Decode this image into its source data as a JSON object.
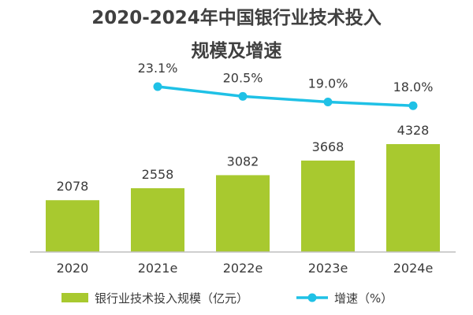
{
  "chart_data": {
    "type": "bar",
    "title_line1": "2020-2024年中国银行业技术投入",
    "title_line2": "规模及增速",
    "categories": [
      "2020",
      "2021e",
      "2022e",
      "2023e",
      "2024e"
    ],
    "series": [
      {
        "name": "银行业技术投入规模（亿元）",
        "type": "bar",
        "values": [
          2078,
          2558,
          3082,
          3668,
          4328
        ],
        "labels": [
          "2078",
          "2558",
          "3082",
          "3668",
          "4328"
        ],
        "color": "#a8c92f"
      },
      {
        "name": "增速（%）",
        "type": "line",
        "values": [
          null,
          23.1,
          20.5,
          19.0,
          18.0
        ],
        "labels": [
          "",
          "23.1%",
          "20.5%",
          "19.0%",
          "18.0%"
        ],
        "color": "#1fc1e6"
      }
    ],
    "axis_color": "#bfbfbf",
    "grid": false,
    "legend_position": "bottom"
  }
}
